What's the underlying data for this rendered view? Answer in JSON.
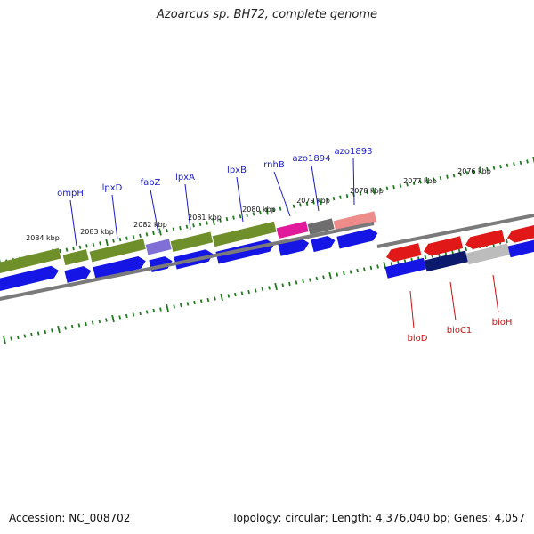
{
  "title": "Azoarcus sp. BH72, complete genome",
  "footer": {
    "accession": "Accession: NC_008702",
    "summary": "Topology: circular; Length: 4,376,040 bp; Genes: 4,057"
  },
  "colors": {
    "forward_gene": "#1515e6",
    "reverse_gene": "#e01818",
    "backbone": "#7a7a7a",
    "tick": "#1f7a1f",
    "label_blue": "#1a1acc",
    "label_red": "#cc1111",
    "cog_olive": "#6f8f2a",
    "cog_purple": "#7f6fd6",
    "cog_magenta": "#e01a9a",
    "cog_grey": "#6e6e6e",
    "cog_pink": "#ee8c8c",
    "cog_navy": "#0c1a6e",
    "cog_silver": "#bcbcbc"
  },
  "scale_labels": [
    "2084 kbp",
    "2083 kbp",
    "2082 kbp",
    "2081 kbp",
    "2080 kbp",
    "2079 kbp",
    "2078 kbp",
    "2077 kbp",
    "2076 kbp"
  ],
  "genes_upper": [
    "ompH",
    "lpxD",
    "fabZ",
    "lpxA",
    "lpxB",
    "rnhB",
    "azo1894",
    "azo1893"
  ],
  "genes_lower": [
    "bioD",
    "bioC1",
    "bioH"
  ]
}
